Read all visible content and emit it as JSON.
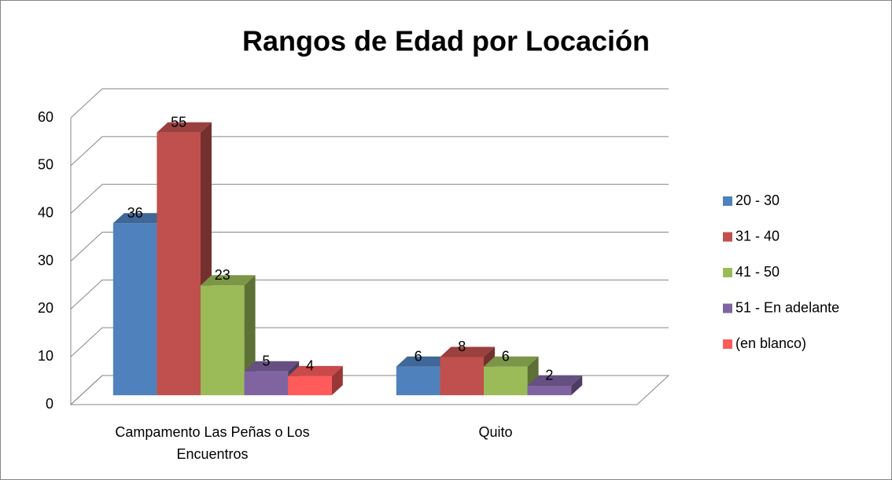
{
  "chart_data": {
    "type": "bar3d",
    "title": "Rangos de Edad por Locación",
    "categories": [
      "Campamento Las Peñas o Los Encuentros",
      "Quito"
    ],
    "series": [
      {
        "name": "20 - 30",
        "color": "#4f81bd",
        "values": [
          36,
          6
        ]
      },
      {
        "name": "31 - 40",
        "color": "#c0504d",
        "values": [
          55,
          8
        ]
      },
      {
        "name": "41 - 50",
        "color": "#9bbb59",
        "values": [
          23,
          6
        ]
      },
      {
        "name": "51 - En adelante",
        "color": "#8064a2",
        "values": [
          5,
          2
        ]
      },
      {
        "name": "(en blanco)",
        "color": "#ff5b5b",
        "values": [
          4,
          null
        ]
      }
    ],
    "ylim": [
      0,
      60
    ],
    "yticks": [
      0,
      10,
      20,
      30,
      40,
      50,
      60
    ],
    "grid": true,
    "legend": "right"
  }
}
